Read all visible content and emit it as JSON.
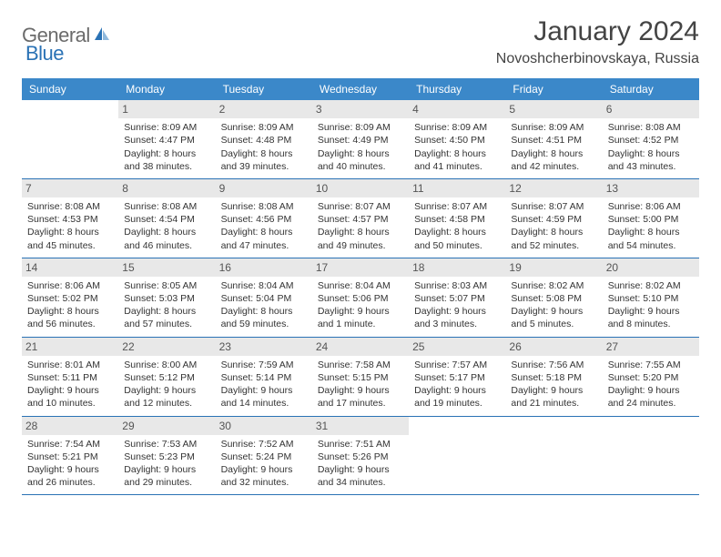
{
  "brand": {
    "general": "General",
    "blue": "Blue"
  },
  "header": {
    "title": "January 2024",
    "location": "Novoshcherbinovskaya, Russia"
  },
  "style": {
    "header_bg": "#3b88c9",
    "border_color": "#2a72b5",
    "daynum_bg": "#e8e8e8",
    "text_color": "#333333"
  },
  "weekdays": [
    "Sunday",
    "Monday",
    "Tuesday",
    "Wednesday",
    "Thursday",
    "Friday",
    "Saturday"
  ],
  "weeks": [
    [
      {
        "n": "",
        "empty": true,
        "sunrise": "",
        "sunset": "",
        "daylight": ""
      },
      {
        "n": "1",
        "sunrise": "Sunrise: 8:09 AM",
        "sunset": "Sunset: 4:47 PM",
        "daylight": "Daylight: 8 hours and 38 minutes."
      },
      {
        "n": "2",
        "sunrise": "Sunrise: 8:09 AM",
        "sunset": "Sunset: 4:48 PM",
        "daylight": "Daylight: 8 hours and 39 minutes."
      },
      {
        "n": "3",
        "sunrise": "Sunrise: 8:09 AM",
        "sunset": "Sunset: 4:49 PM",
        "daylight": "Daylight: 8 hours and 40 minutes."
      },
      {
        "n": "4",
        "sunrise": "Sunrise: 8:09 AM",
        "sunset": "Sunset: 4:50 PM",
        "daylight": "Daylight: 8 hours and 41 minutes."
      },
      {
        "n": "5",
        "sunrise": "Sunrise: 8:09 AM",
        "sunset": "Sunset: 4:51 PM",
        "daylight": "Daylight: 8 hours and 42 minutes."
      },
      {
        "n": "6",
        "sunrise": "Sunrise: 8:08 AM",
        "sunset": "Sunset: 4:52 PM",
        "daylight": "Daylight: 8 hours and 43 minutes."
      }
    ],
    [
      {
        "n": "7",
        "sunrise": "Sunrise: 8:08 AM",
        "sunset": "Sunset: 4:53 PM",
        "daylight": "Daylight: 8 hours and 45 minutes."
      },
      {
        "n": "8",
        "sunrise": "Sunrise: 8:08 AM",
        "sunset": "Sunset: 4:54 PM",
        "daylight": "Daylight: 8 hours and 46 minutes."
      },
      {
        "n": "9",
        "sunrise": "Sunrise: 8:08 AM",
        "sunset": "Sunset: 4:56 PM",
        "daylight": "Daylight: 8 hours and 47 minutes."
      },
      {
        "n": "10",
        "sunrise": "Sunrise: 8:07 AM",
        "sunset": "Sunset: 4:57 PM",
        "daylight": "Daylight: 8 hours and 49 minutes."
      },
      {
        "n": "11",
        "sunrise": "Sunrise: 8:07 AM",
        "sunset": "Sunset: 4:58 PM",
        "daylight": "Daylight: 8 hours and 50 minutes."
      },
      {
        "n": "12",
        "sunrise": "Sunrise: 8:07 AM",
        "sunset": "Sunset: 4:59 PM",
        "daylight": "Daylight: 8 hours and 52 minutes."
      },
      {
        "n": "13",
        "sunrise": "Sunrise: 8:06 AM",
        "sunset": "Sunset: 5:00 PM",
        "daylight": "Daylight: 8 hours and 54 minutes."
      }
    ],
    [
      {
        "n": "14",
        "sunrise": "Sunrise: 8:06 AM",
        "sunset": "Sunset: 5:02 PM",
        "daylight": "Daylight: 8 hours and 56 minutes."
      },
      {
        "n": "15",
        "sunrise": "Sunrise: 8:05 AM",
        "sunset": "Sunset: 5:03 PM",
        "daylight": "Daylight: 8 hours and 57 minutes."
      },
      {
        "n": "16",
        "sunrise": "Sunrise: 8:04 AM",
        "sunset": "Sunset: 5:04 PM",
        "daylight": "Daylight: 8 hours and 59 minutes."
      },
      {
        "n": "17",
        "sunrise": "Sunrise: 8:04 AM",
        "sunset": "Sunset: 5:06 PM",
        "daylight": "Daylight: 9 hours and 1 minute."
      },
      {
        "n": "18",
        "sunrise": "Sunrise: 8:03 AM",
        "sunset": "Sunset: 5:07 PM",
        "daylight": "Daylight: 9 hours and 3 minutes."
      },
      {
        "n": "19",
        "sunrise": "Sunrise: 8:02 AM",
        "sunset": "Sunset: 5:08 PM",
        "daylight": "Daylight: 9 hours and 5 minutes."
      },
      {
        "n": "20",
        "sunrise": "Sunrise: 8:02 AM",
        "sunset": "Sunset: 5:10 PM",
        "daylight": "Daylight: 9 hours and 8 minutes."
      }
    ],
    [
      {
        "n": "21",
        "sunrise": "Sunrise: 8:01 AM",
        "sunset": "Sunset: 5:11 PM",
        "daylight": "Daylight: 9 hours and 10 minutes."
      },
      {
        "n": "22",
        "sunrise": "Sunrise: 8:00 AM",
        "sunset": "Sunset: 5:12 PM",
        "daylight": "Daylight: 9 hours and 12 minutes."
      },
      {
        "n": "23",
        "sunrise": "Sunrise: 7:59 AM",
        "sunset": "Sunset: 5:14 PM",
        "daylight": "Daylight: 9 hours and 14 minutes."
      },
      {
        "n": "24",
        "sunrise": "Sunrise: 7:58 AM",
        "sunset": "Sunset: 5:15 PM",
        "daylight": "Daylight: 9 hours and 17 minutes."
      },
      {
        "n": "25",
        "sunrise": "Sunrise: 7:57 AM",
        "sunset": "Sunset: 5:17 PM",
        "daylight": "Daylight: 9 hours and 19 minutes."
      },
      {
        "n": "26",
        "sunrise": "Sunrise: 7:56 AM",
        "sunset": "Sunset: 5:18 PM",
        "daylight": "Daylight: 9 hours and 21 minutes."
      },
      {
        "n": "27",
        "sunrise": "Sunrise: 7:55 AM",
        "sunset": "Sunset: 5:20 PM",
        "daylight": "Daylight: 9 hours and 24 minutes."
      }
    ],
    [
      {
        "n": "28",
        "sunrise": "Sunrise: 7:54 AM",
        "sunset": "Sunset: 5:21 PM",
        "daylight": "Daylight: 9 hours and 26 minutes."
      },
      {
        "n": "29",
        "sunrise": "Sunrise: 7:53 AM",
        "sunset": "Sunset: 5:23 PM",
        "daylight": "Daylight: 9 hours and 29 minutes."
      },
      {
        "n": "30",
        "sunrise": "Sunrise: 7:52 AM",
        "sunset": "Sunset: 5:24 PM",
        "daylight": "Daylight: 9 hours and 32 minutes."
      },
      {
        "n": "31",
        "sunrise": "Sunrise: 7:51 AM",
        "sunset": "Sunset: 5:26 PM",
        "daylight": "Daylight: 9 hours and 34 minutes."
      },
      {
        "n": "",
        "empty": true,
        "sunrise": "",
        "sunset": "",
        "daylight": ""
      },
      {
        "n": "",
        "empty": true,
        "sunrise": "",
        "sunset": "",
        "daylight": ""
      },
      {
        "n": "",
        "empty": true,
        "sunrise": "",
        "sunset": "",
        "daylight": ""
      }
    ]
  ]
}
